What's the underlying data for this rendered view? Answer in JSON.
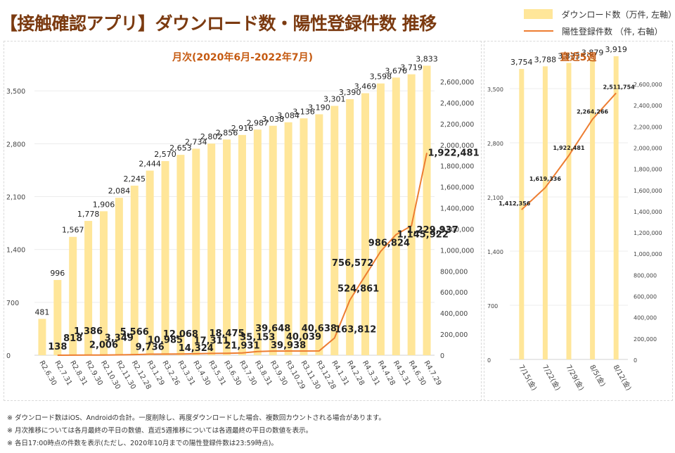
{
  "title": "【接触確認アプリ】ダウンロード数・陽性登録件数 推移",
  "legend": {
    "bar_label": "ダウンロード数（万件, 左軸）",
    "line_label": "陽性登録件数 （件, 右軸）"
  },
  "colors": {
    "bar": "#ffe699",
    "line": "#ed7d31",
    "title": "#7b3a10",
    "panel_title": "#c55a11"
  },
  "notes": [
    "※ ダウンロード数はiOS、Androidの合計。一度削除し、再度ダウンロードした場合、複数回カウントされる場合があります。",
    "※ 月次推移については各月最終の平日の数値、直近5週推移については各週最終の平日の数値を表示。",
    "※ 各日17:00時点の件数を表示(ただし、2020年10月までの陽性登録件数は23:59時点)。"
  ],
  "chart_data": [
    {
      "type": "bar",
      "title": "月次(2020年6月-2022年7月)",
      "categories": [
        "R2.6.30",
        "R2.7.31",
        "R2.8.31",
        "R2.9.30",
        "R2.10.30",
        "R2.11.30",
        "R2.12.28",
        "R3.1.29",
        "R3.2.26",
        "R3.3.31",
        "R3.4.30",
        "R3.5.31",
        "R3.6.30",
        "R3.7.30",
        "R3.8.31",
        "R3.9.30",
        "R3.10.29",
        "R3.11.30",
        "R3.12.28",
        "R4.1.31",
        "R4.2.28",
        "R4.3.31",
        "R4.4.28",
        "R4.5.31",
        "R4.6.30",
        "R4.7.29"
      ],
      "series": [
        {
          "name": "ダウンロード数（万件, 左軸）",
          "type": "bar",
          "axis": "left",
          "values": [
            481,
            996,
            1567,
            1778,
            1906,
            2084,
            2245,
            2444,
            2570,
            2653,
            2734,
            2802,
            2856,
            2916,
            2987,
            3038,
            3084,
            3136,
            3190,
            3301,
            3390,
            3469,
            3598,
            3676,
            3719,
            3833
          ]
        },
        {
          "name": "陽性登録件数 （件, 右軸）",
          "type": "line",
          "axis": "right",
          "values": [
            null,
            138,
            818,
            1386,
            2006,
            3349,
            5566,
            9736,
            10985,
            12068,
            14324,
            17311,
            18475,
            21931,
            35153,
            39648,
            39938,
            40039,
            40638,
            163812,
            524861,
            756572,
            986824,
            1145922,
            1229937,
            1922481
          ]
        }
      ],
      "left_axis": {
        "ylim": [
          0,
          4200
        ],
        "ticks": [
          0,
          700,
          1400,
          2100,
          2800,
          3500
        ]
      },
      "right_axis": {
        "ylim": [
          0,
          2600000
        ],
        "ticks": [
          0,
          200000,
          400000,
          600000,
          800000,
          1000000,
          1200000,
          1400000,
          1600000,
          1800000,
          2000000,
          2200000,
          2400000,
          2600000
        ]
      },
      "grid": true
    },
    {
      "type": "bar",
      "title": "直近5週",
      "categories": [
        "7/15(金)",
        "7/22(金)",
        "7/29(金)",
        "8/5(金)",
        "8/12(金)"
      ],
      "series": [
        {
          "name": "ダウンロード数（万件, 左軸）",
          "type": "bar",
          "axis": "left",
          "values": [
            3754,
            3788,
            3833,
            3879,
            3919
          ]
        },
        {
          "name": "陽性登録件数 （件, 右軸）",
          "type": "line",
          "axis": "right",
          "values": [
            1412356,
            1619336,
            1922481,
            2264266,
            2511754
          ]
        }
      ],
      "left_axis": {
        "ylim": [
          0,
          4200
        ],
        "ticks": [
          0,
          700,
          1400,
          2100,
          2800,
          3500
        ]
      },
      "right_axis": {
        "ylim": [
          0,
          2600000
        ],
        "ticks": [
          0,
          200000,
          400000,
          600000,
          800000,
          1000000,
          1200000,
          1400000,
          1600000,
          1800000,
          2000000,
          2200000,
          2400000,
          2600000
        ]
      },
      "grid": true
    }
  ]
}
